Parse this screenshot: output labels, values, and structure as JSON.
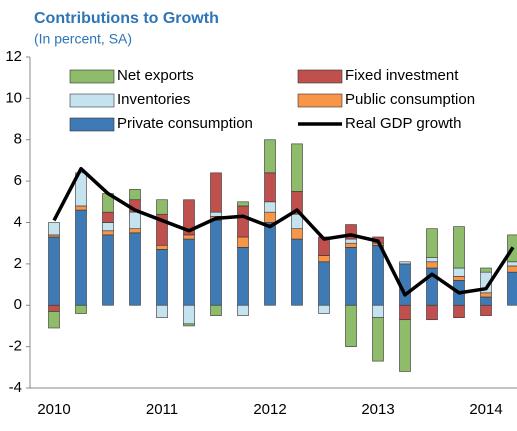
{
  "chart_data": {
    "type": "stacked_bar_line",
    "title": "Contributions to Growth",
    "subtitle": "(In percent, SA)",
    "categories": [
      "2010",
      null,
      null,
      null,
      "2011",
      null,
      null,
      null,
      "2012",
      null,
      null,
      null,
      "2013",
      null,
      null,
      null,
      "2014",
      null
    ],
    "series": [
      {
        "name": "Private consumption",
        "color": "#3e7bb6",
        "values": [
          3.3,
          4.6,
          3.4,
          3.5,
          2.7,
          3.2,
          4.1,
          2.8,
          4.0,
          3.2,
          2.1,
          2.8,
          2.9,
          2.0,
          1.8,
          1.2,
          0.4,
          1.6
        ]
      },
      {
        "name": "Public consumption",
        "color": "#f79646",
        "values": [
          0.1,
          0.2,
          0.2,
          0.2,
          0.2,
          0.2,
          0.2,
          0.5,
          0.5,
          0.5,
          0.3,
          0.2,
          0.1,
          0.0,
          0.3,
          0.2,
          0.2,
          0.3
        ]
      },
      {
        "name": "Inventories",
        "color": "#c5e3ef",
        "values": [
          0.6,
          1.6,
          0.4,
          0.8,
          -0.6,
          -0.9,
          0.2,
          -0.5,
          0.5,
          0.7,
          -0.4,
          0.2,
          -0.6,
          0.1,
          0.2,
          0.4,
          1.0,
          0.2
        ]
      },
      {
        "name": "Fixed investment",
        "color": "#c0504d",
        "values": [
          -0.3,
          0.0,
          0.5,
          0.6,
          1.5,
          1.7,
          1.9,
          1.5,
          1.4,
          1.1,
          0.9,
          0.7,
          0.3,
          -0.7,
          -0.7,
          -0.6,
          -0.5,
          0.0
        ]
      },
      {
        "name": "Net exports",
        "color": "#8fbc6a",
        "values": [
          -0.8,
          -0.4,
          0.9,
          0.5,
          0.7,
          -0.1,
          -0.5,
          0.2,
          1.6,
          2.3,
          0.0,
          -2.0,
          -2.1,
          -2.5,
          1.4,
          2.0,
          0.2,
          1.3
        ]
      },
      {
        "name": "Real GDP growth",
        "color": "#000000",
        "line": true,
        "values": [
          4.1,
          6.6,
          5.4,
          4.6,
          4.1,
          3.6,
          4.2,
          4.3,
          3.8,
          4.6,
          3.2,
          3.4,
          3.1,
          0.5,
          1.5,
          0.6,
          0.8,
          2.8
        ]
      }
    ],
    "legend_order": [
      4,
      3,
      2,
      1,
      0,
      5
    ],
    "ylim": [
      -4,
      12
    ],
    "yticks": [
      -4,
      -2,
      0,
      2,
      4,
      6,
      8,
      10,
      12
    ],
    "grid": false
  }
}
